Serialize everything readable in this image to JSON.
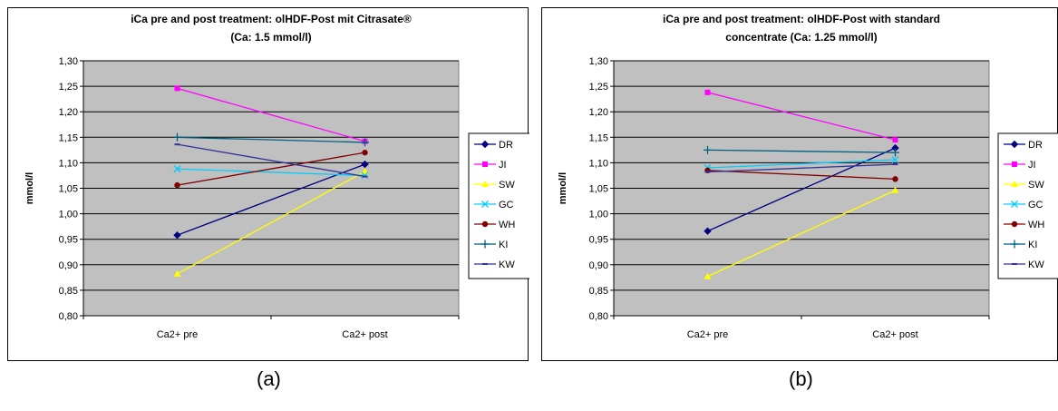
{
  "chart_data": [
    {
      "id": "a",
      "type": "line",
      "title": [
        "iCa pre and post treatment: olHDF-Post mit Citrasate®",
        "(Ca: 1.5 mmol/l)"
      ],
      "xlabel": "",
      "ylabel": "mmol/l",
      "categories": [
        "Ca2+ pre",
        "Ca2+ post"
      ],
      "ylim": [
        0.8,
        1.3
      ],
      "y_ticks": [
        "0,80",
        "0,85",
        "0,90",
        "0,95",
        "1,00",
        "1,05",
        "1,10",
        "1,15",
        "1,20",
        "1,25",
        "1,30"
      ],
      "plot_background": "#c0c0c0",
      "grid": true,
      "legend_position": "right",
      "series": [
        {
          "name": "DR",
          "values": [
            0.958,
            1.097
          ],
          "color": "#000080",
          "marker": "diamond"
        },
        {
          "name": "JI",
          "values": [
            1.246,
            1.142
          ],
          "color": "#ff00ff",
          "marker": "square"
        },
        {
          "name": "SW",
          "values": [
            0.882,
            1.083
          ],
          "color": "#ffff00",
          "marker": "triangle"
        },
        {
          "name": "GC",
          "values": [
            1.088,
            1.075
          ],
          "color": "#00ccff",
          "marker": "x"
        },
        {
          "name": "WH",
          "values": [
            1.056,
            1.12
          ],
          "color": "#800000",
          "marker": "circle"
        },
        {
          "name": "KI",
          "values": [
            1.15,
            1.14
          ],
          "color": "#006080",
          "marker": "plus"
        },
        {
          "name": "KW",
          "values": [
            1.136,
            1.073
          ],
          "color": "#333399",
          "marker": "dash"
        }
      ]
    },
    {
      "id": "b",
      "type": "line",
      "title": [
        "iCa pre and post treatment: olHDF-Post with standard",
        "concentrate (Ca: 1.25 mmol/l)"
      ],
      "xlabel": "",
      "ylabel": "mmol/l",
      "categories": [
        "Ca2+ pre",
        "Ca2+ post"
      ],
      "ylim": [
        0.8,
        1.3
      ],
      "y_ticks": [
        "0,80",
        "0,85",
        "0,90",
        "0,95",
        "1,00",
        "1,05",
        "1,10",
        "1,15",
        "1,20",
        "1,25",
        "1,30"
      ],
      "plot_background": "#c0c0c0",
      "grid": true,
      "legend_position": "right",
      "series": [
        {
          "name": "DR",
          "values": [
            0.966,
            1.129
          ],
          "color": "#000080",
          "marker": "diamond"
        },
        {
          "name": "JI",
          "values": [
            1.238,
            1.145
          ],
          "color": "#ff00ff",
          "marker": "square"
        },
        {
          "name": "SW",
          "values": [
            0.877,
            1.046
          ],
          "color": "#ffff00",
          "marker": "triangle"
        },
        {
          "name": "GC",
          "values": [
            1.09,
            1.106
          ],
          "color": "#00ccff",
          "marker": "x"
        },
        {
          "name": "WH",
          "values": [
            1.085,
            1.068
          ],
          "color": "#800000",
          "marker": "circle"
        },
        {
          "name": "KI",
          "values": [
            1.125,
            1.12
          ],
          "color": "#006080",
          "marker": "plus"
        },
        {
          "name": "KW",
          "values": [
            1.082,
            1.097
          ],
          "color": "#333399",
          "marker": "dash"
        }
      ]
    }
  ],
  "captions": {
    "a": "(a)",
    "b": "(b)"
  }
}
